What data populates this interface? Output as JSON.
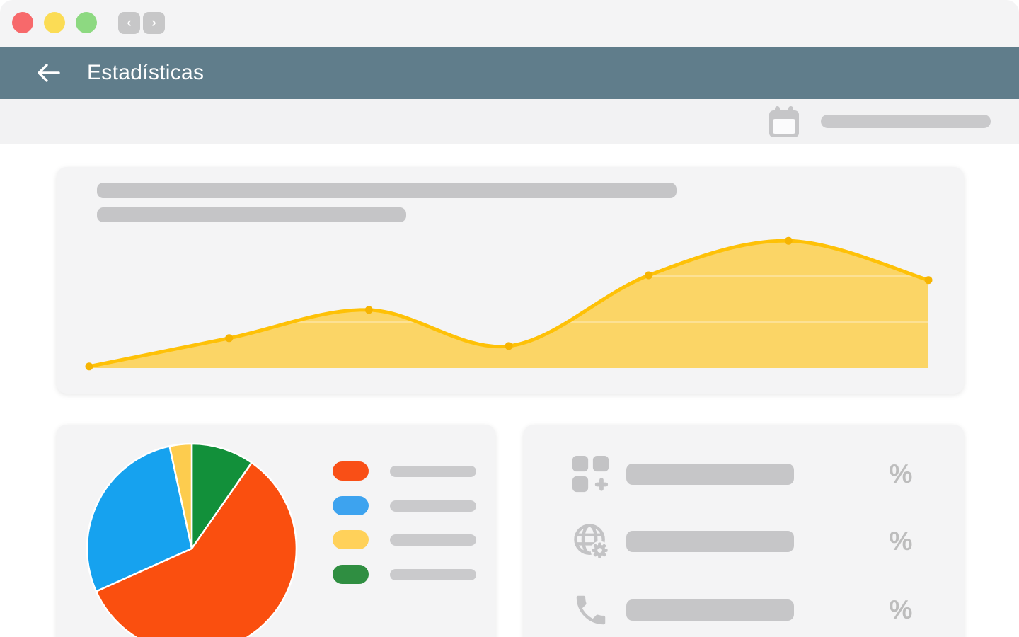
{
  "window": {
    "traffic_lights": [
      {
        "name": "close",
        "color": "#F7696B"
      },
      {
        "name": "minimize",
        "color": "#FBDC55"
      },
      {
        "name": "zoom",
        "color": "#8DD981"
      }
    ],
    "back_glyph": "‹",
    "forward_glyph": "›"
  },
  "header": {
    "title": "Estadísticas",
    "bg_color": "#607D8B"
  },
  "toolbar": {
    "calendar_icon": "calendar-icon",
    "date_range_placeholder": ""
  },
  "palette": {
    "chart_line": "#FEC107",
    "chart_fill": "#FBD566",
    "chart_marker": "#F6B402",
    "placeholder_gray": "#C5C5C7",
    "icon_gray": "#C3C3C5"
  },
  "chart_data": [
    {
      "type": "area",
      "title": "(placeholder bar - no text shown)",
      "x": [
        1,
        2,
        3,
        4,
        5,
        6,
        7
      ],
      "x_tick_labels": [],
      "values": [
        1,
        19,
        37,
        14,
        59,
        81,
        56
      ],
      "ylim": [
        0,
        100
      ],
      "ylabel": "",
      "xlabel": "",
      "grid": "faint horizontal lines visible inside fill",
      "legend_position": "none",
      "line_color": "#FEC107",
      "fill_color": "#FBD566",
      "marker_color": "#F6B402"
    },
    {
      "type": "pie",
      "title": "(no title shown)",
      "start": "12 o'clock",
      "direction": "clockwise",
      "segments": [
        {
          "name": "green",
          "value": 9.7,
          "color": "#12903A"
        },
        {
          "name": "orange",
          "value": 58.6,
          "color": "#FA4F0F"
        },
        {
          "name": "blue",
          "value": 28.3,
          "color": "#16A2EF"
        },
        {
          "name": "yellow",
          "value": 3.4,
          "color": "#FDCC4E"
        }
      ],
      "legend": [
        {
          "name": "orange",
          "color": "#F94F16",
          "label": ""
        },
        {
          "name": "blue",
          "color": "#3DA3EF",
          "label": ""
        },
        {
          "name": "yellow",
          "color": "#FFD15A",
          "label": ""
        },
        {
          "name": "green",
          "color": "#2F8E41",
          "label": ""
        }
      ],
      "legend_position": "right",
      "legend_labels_are_placeholders": true
    }
  ],
  "stats": {
    "rows": [
      {
        "icon": "apps-add-icon",
        "label_placeholder": "",
        "value_unit": "%"
      },
      {
        "icon": "globe-settings-icon",
        "label_placeholder": "",
        "value_unit": "%"
      },
      {
        "icon": "phone-icon",
        "label_placeholder": "",
        "value_unit": "%"
      }
    ]
  }
}
